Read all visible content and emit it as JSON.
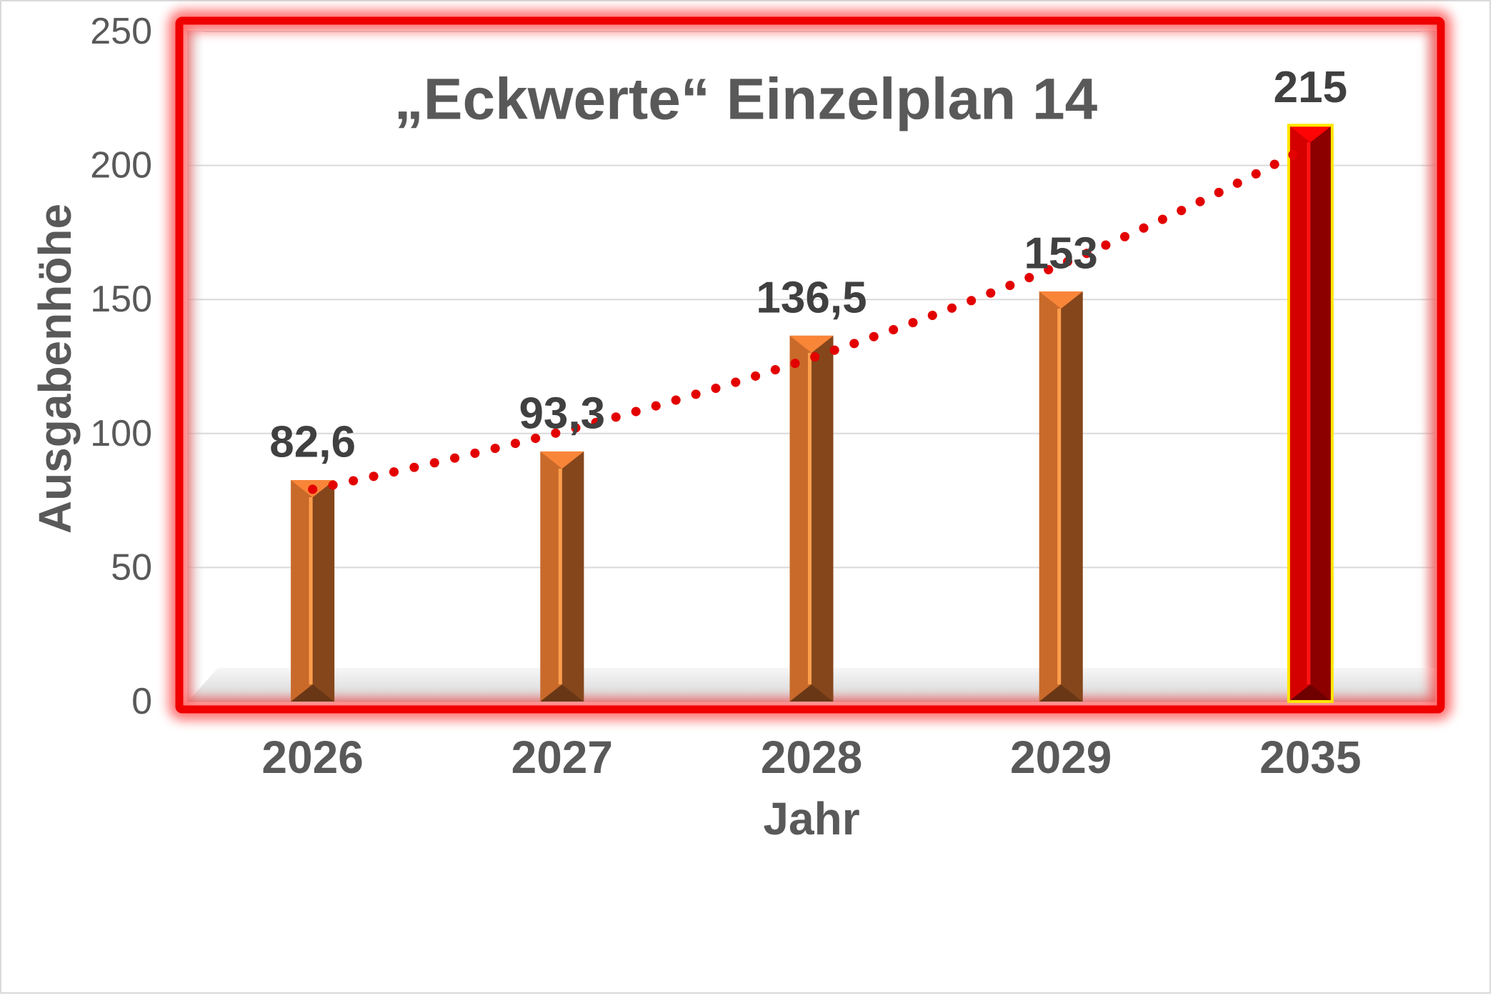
{
  "chart_data": {
    "type": "bar",
    "title": "„Eckwerte“ Einzelplan 14",
    "xlabel": "Jahr",
    "ylabel": "Ausgabenhöhe",
    "categories": [
      "2026",
      "2027",
      "2028",
      "2029",
      "2035"
    ],
    "values": [
      82.6,
      93.3,
      136.5,
      153,
      215
    ],
    "data_labels": [
      "82,6",
      "93,3",
      "136,5",
      "153",
      "215"
    ],
    "ylim": [
      0,
      250
    ],
    "yticks": [
      0,
      50,
      100,
      150,
      200,
      250
    ],
    "grid": true,
    "legend": "none",
    "bar_colors": [
      "#c96a2b",
      "#c96a2b",
      "#c96a2b",
      "#c96a2b",
      "#d40000"
    ],
    "highlight": {
      "category": "2035",
      "outline_color": "#ffe600"
    },
    "trendline": {
      "type": "exponential",
      "style": "dotted",
      "color": "#e30000"
    },
    "frame_color": "#ff0000"
  }
}
